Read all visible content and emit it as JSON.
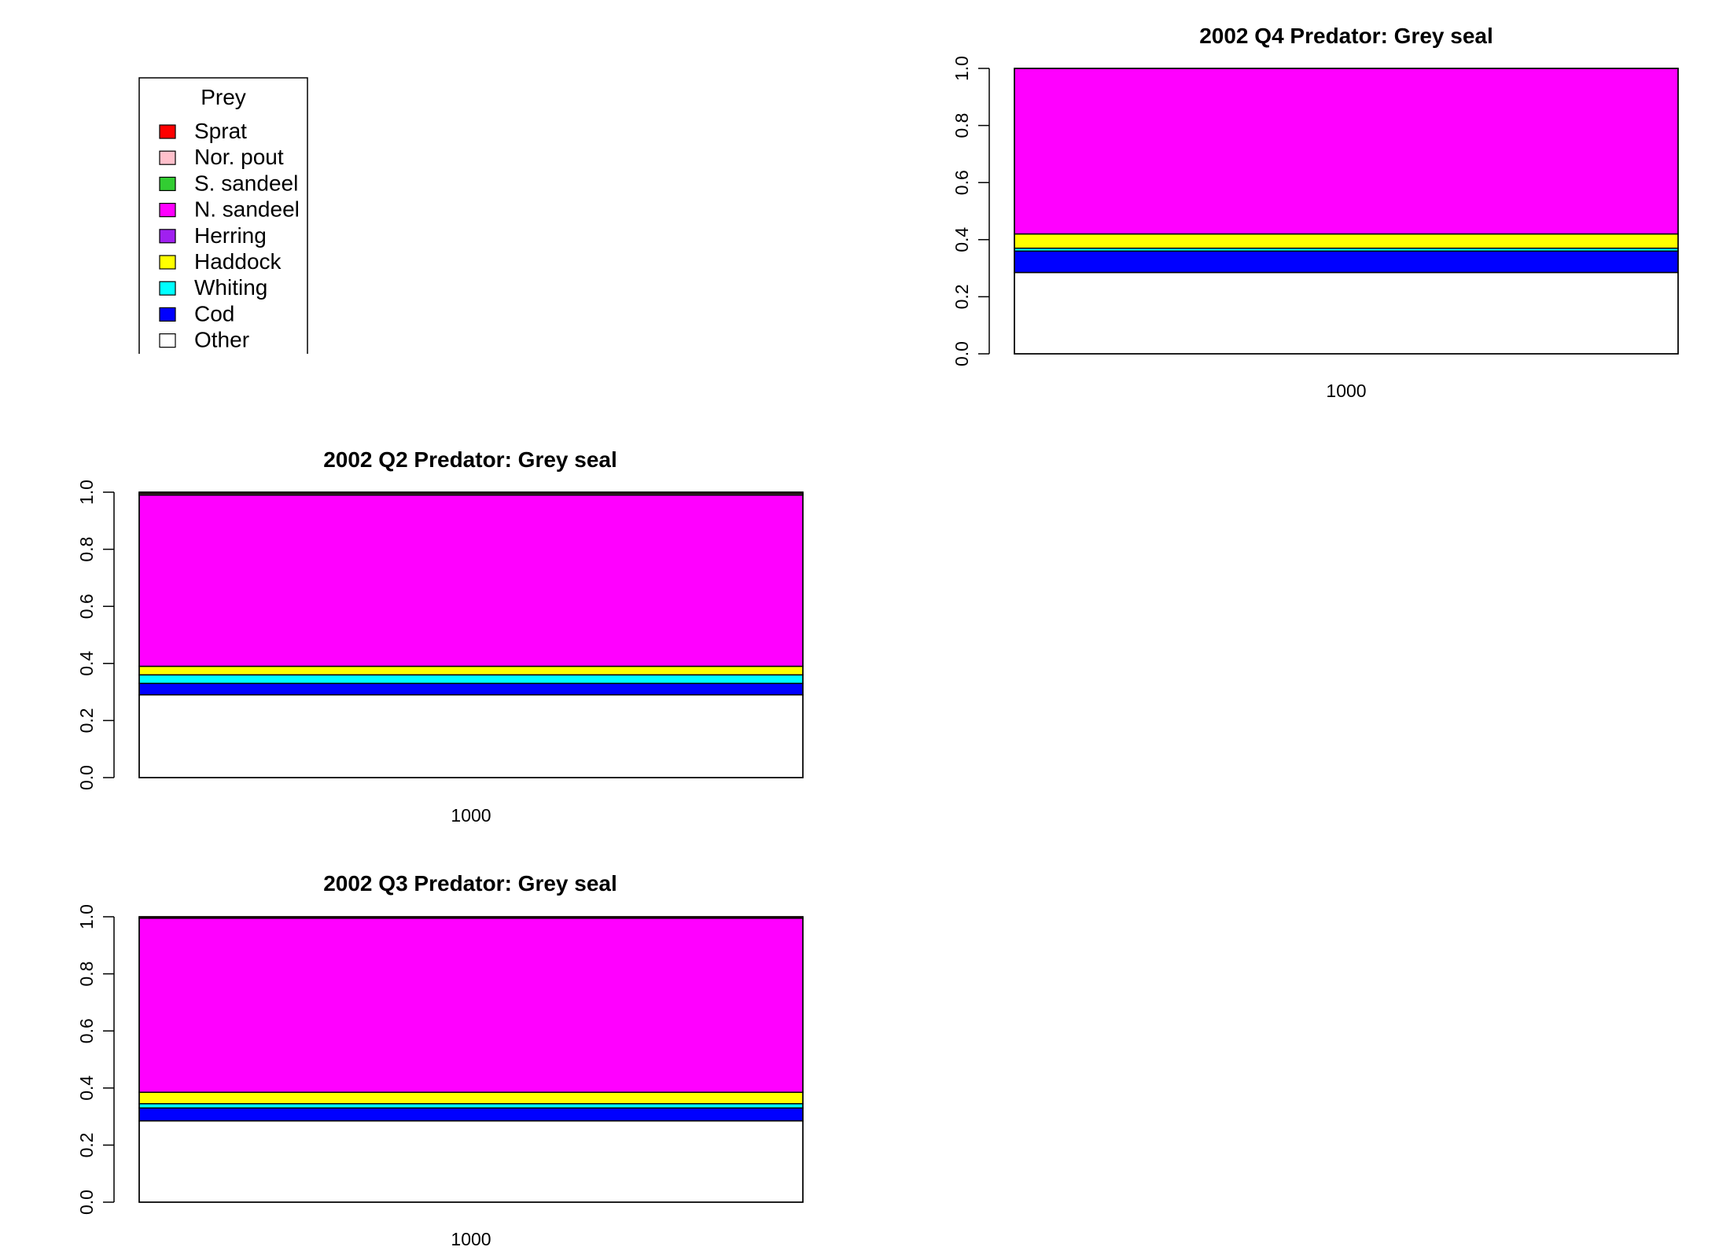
{
  "legend": {
    "title": "Prey",
    "items": [
      {
        "name": "Sprat",
        "color": "#ff0000"
      },
      {
        "name": "Nor. pout",
        "color": "#ffc0cb"
      },
      {
        "name": "S. sandeel",
        "color": "#32cd32"
      },
      {
        "name": "N. sandeel",
        "color": "#ff00ff"
      },
      {
        "name": "Herring",
        "color": "#a020f0"
      },
      {
        "name": "Haddock",
        "color": "#ffff00"
      },
      {
        "name": "Whiting",
        "color": "#00ffff"
      },
      {
        "name": "Cod",
        "color": "#0000ff"
      },
      {
        "name": "Other",
        "color": "#ffffff"
      }
    ]
  },
  "chart_data": [
    {
      "type": "bar",
      "stacked": true,
      "title": "2002 Q4  Predator: Grey seal",
      "categories": [
        "1000"
      ],
      "ylim": [
        0,
        1
      ],
      "yticks": [
        "0.0",
        "0.2",
        "0.4",
        "0.6",
        "0.8",
        "1.0"
      ],
      "series": [
        {
          "name": "Other",
          "values": [
            0.285
          ]
        },
        {
          "name": "Cod",
          "values": [
            0.075
          ]
        },
        {
          "name": "Whiting",
          "values": [
            0.01
          ]
        },
        {
          "name": "Haddock",
          "values": [
            0.05
          ]
        },
        {
          "name": "Herring",
          "values": [
            0.0
          ]
        },
        {
          "name": "N. sandeel",
          "values": [
            0.58
          ]
        },
        {
          "name": "S. sandeel",
          "values": [
            0.0
          ]
        },
        {
          "name": "Nor. pout",
          "values": [
            0.0
          ]
        },
        {
          "name": "Sprat",
          "values": [
            0.0
          ]
        }
      ]
    },
    {
      "type": "bar",
      "stacked": true,
      "title": "2002 Q2  Predator: Grey seal",
      "categories": [
        "1000"
      ],
      "ylim": [
        0,
        1
      ],
      "yticks": [
        "0.0",
        "0.2",
        "0.4",
        "0.6",
        "0.8",
        "1.0"
      ],
      "series": [
        {
          "name": "Other",
          "values": [
            0.29
          ]
        },
        {
          "name": "Cod",
          "values": [
            0.04
          ]
        },
        {
          "name": "Whiting",
          "values": [
            0.03
          ]
        },
        {
          "name": "Haddock",
          "values": [
            0.03
          ]
        },
        {
          "name": "Herring",
          "values": [
            0.0
          ]
        },
        {
          "name": "N. sandeel",
          "values": [
            0.6
          ]
        },
        {
          "name": "S. sandeel",
          "values": [
            0.0
          ]
        },
        {
          "name": "Nor. pout",
          "values": [
            0.005
          ]
        },
        {
          "name": "Sprat",
          "values": [
            0.005
          ]
        }
      ]
    },
    {
      "type": "bar",
      "stacked": true,
      "title": "2002 Q3  Predator: Grey seal",
      "categories": [
        "1000"
      ],
      "ylim": [
        0,
        1
      ],
      "yticks": [
        "0.0",
        "0.2",
        "0.4",
        "0.6",
        "0.8",
        "1.0"
      ],
      "series": [
        {
          "name": "Other",
          "values": [
            0.285
          ]
        },
        {
          "name": "Cod",
          "values": [
            0.045
          ]
        },
        {
          "name": "Whiting",
          "values": [
            0.015
          ]
        },
        {
          "name": "Haddock",
          "values": [
            0.04
          ]
        },
        {
          "name": "Herring",
          "values": [
            0.0
          ]
        },
        {
          "name": "N. sandeel",
          "values": [
            0.61
          ]
        },
        {
          "name": "S. sandeel",
          "values": [
            0.0
          ]
        },
        {
          "name": "Nor. pout",
          "values": [
            0.0
          ]
        },
        {
          "name": "Sprat",
          "values": [
            0.005
          ]
        }
      ]
    }
  ]
}
